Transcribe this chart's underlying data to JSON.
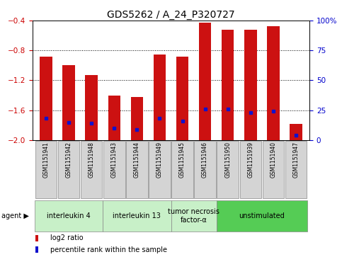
{
  "title": "GDS5262 / A_24_P320727",
  "samples": [
    "GSM1151941",
    "GSM1151942",
    "GSM1151948",
    "GSM1151943",
    "GSM1151944",
    "GSM1151949",
    "GSM1151945",
    "GSM1151946",
    "GSM1151950",
    "GSM1151939",
    "GSM1151940",
    "GSM1151947"
  ],
  "log2_ratios": [
    -0.88,
    -1.0,
    -1.13,
    -1.4,
    -1.42,
    -0.85,
    -0.88,
    -0.43,
    -0.52,
    -0.52,
    -0.48,
    -1.78
  ],
  "percentile_ranks": [
    18,
    15,
    14,
    10,
    9,
    18,
    16,
    26,
    26,
    23,
    24,
    4
  ],
  "agents": [
    {
      "label": "interleukin 4",
      "start": 0,
      "end": 3,
      "color": "#c8f0c8"
    },
    {
      "label": "interleukin 13",
      "start": 3,
      "end": 6,
      "color": "#c8f0c8"
    },
    {
      "label": "tumor necrosis\nfactor-α",
      "start": 6,
      "end": 8,
      "color": "#c8f0c8"
    },
    {
      "label": "unstimulated",
      "start": 8,
      "end": 12,
      "color": "#55cc55"
    }
  ],
  "ylim_left": [
    -2.0,
    -0.4
  ],
  "ylim_right": [
    0,
    100
  ],
  "yticks_left": [
    -2.0,
    -1.6,
    -1.2,
    -0.8,
    -0.4
  ],
  "yticks_right": [
    0,
    25,
    50,
    75,
    100
  ],
  "grid_yticks": [
    -1.6,
    -1.2,
    -0.8
  ],
  "bar_color": "#cc1111",
  "percentile_color": "#1111cc",
  "bar_width": 0.55,
  "background_color": "#ffffff",
  "plot_bg_color": "#ffffff",
  "tick_label_color_left": "#cc0000",
  "tick_label_color_right": "#0000cc",
  "sample_box_color": "#d4d4d4",
  "legend_items": [
    {
      "label": "log2 ratio",
      "color": "#cc1111"
    },
    {
      "label": "percentile rank within the sample",
      "color": "#1111cc"
    }
  ],
  "title_fontsize": 10,
  "tick_fontsize": 7.5,
  "sample_fontsize": 5.5,
  "agent_fontsize": 7,
  "legend_fontsize": 7
}
